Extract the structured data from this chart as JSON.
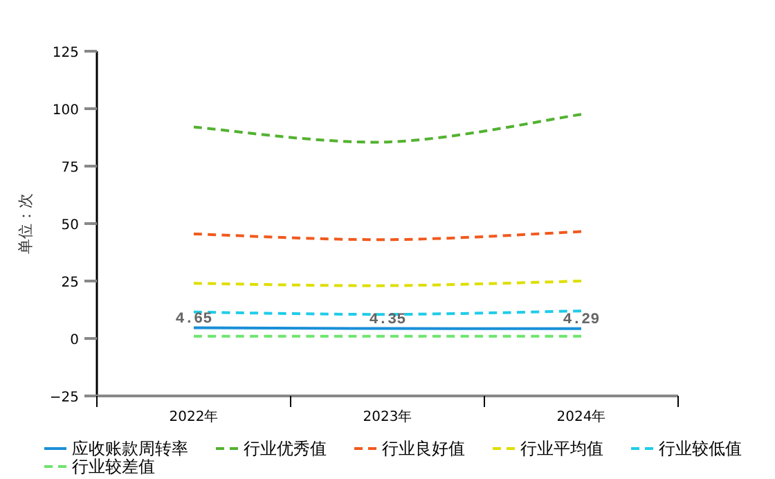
{
  "chart_data": {
    "type": "line",
    "ylabel": "单位：次",
    "categories": [
      "2022年",
      "2023年",
      "2024年"
    ],
    "ylim": [
      -25,
      125
    ],
    "yticks": [
      -25,
      0,
      25,
      50,
      75,
      100,
      125
    ],
    "legend": "bottom",
    "marker": "none",
    "series": [
      {
        "name": "应收账款周转率",
        "color": "#1a8fd8",
        "line_style": "solid",
        "values": [
          4.65,
          4.35,
          4.29
        ],
        "value_labels": [
          "4.65",
          "4.35",
          "4.29"
        ]
      },
      {
        "name": "行业优秀值",
        "color": "#52b230",
        "line_style": "dashed",
        "values": [
          92,
          85.5,
          97.5
        ]
      },
      {
        "name": "行业良好值",
        "color": "#f05a1e",
        "line_style": "dashed",
        "values": [
          45.5,
          43,
          46.5
        ]
      },
      {
        "name": "行业平均值",
        "color": "#dede00",
        "line_style": "dashed",
        "values": [
          24,
          23,
          25
        ]
      },
      {
        "name": "行业较低值",
        "color": "#20cce8",
        "line_style": "dashed",
        "values": [
          11.5,
          10.5,
          12
        ]
      },
      {
        "name": "行业较差值",
        "color": "#6ee46e",
        "line_style": "dashed",
        "values": [
          1,
          1,
          1
        ]
      }
    ]
  }
}
